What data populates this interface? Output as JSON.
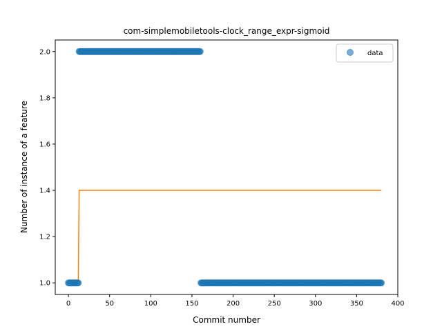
{
  "chart_data": {
    "type": "scatter",
    "title": "com-simplemobiletools-clock_range_expr-sigmoid",
    "xlabel": "Commit number",
    "ylabel": "Number of instance of a feature",
    "xlim": [
      -16,
      400
    ],
    "ylim": [
      0.95,
      2.05
    ],
    "xticks": [
      0,
      50,
      100,
      150,
      200,
      250,
      300,
      350,
      400
    ],
    "yticks": [
      1.0,
      1.2,
      1.4,
      1.6,
      1.8,
      2.0
    ],
    "xtick_labels": [
      "0",
      "50",
      "100",
      "150",
      "200",
      "250",
      "300",
      "350",
      "400"
    ],
    "ytick_labels": [
      "1.0",
      "1.2",
      "1.4",
      "1.6",
      "1.8",
      "2.0"
    ],
    "legend": {
      "position": "top-right",
      "entries": [
        "data"
      ]
    },
    "grid": false,
    "series": [
      {
        "name": "data",
        "kind": "scatter",
        "color": "#1f77b4",
        "segments": [
          {
            "x_start": 0,
            "x_end": 12,
            "y": 1.0
          },
          {
            "x_start": 13,
            "x_end": 160,
            "y": 2.0
          },
          {
            "x_start": 161,
            "x_end": 380,
            "y": 1.0
          }
        ]
      },
      {
        "kind": "line",
        "color": "#ff7f0e",
        "points": [
          [
            0,
            1.0
          ],
          [
            12,
            1.0
          ],
          [
            13,
            1.4
          ],
          [
            380,
            1.4
          ]
        ]
      }
    ]
  }
}
